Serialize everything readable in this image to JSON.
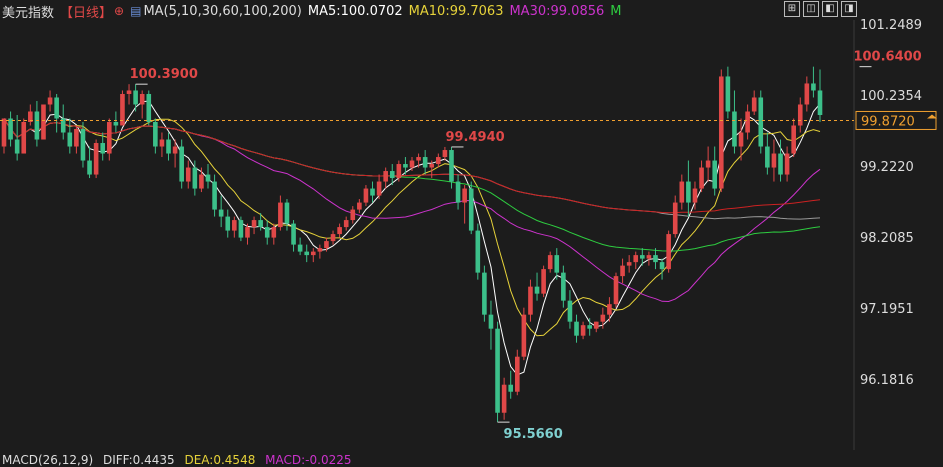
{
  "header": {
    "symbol": "美元指数",
    "period": "【日线】",
    "ma_list": "MA(5,10,30,60,100,200)",
    "ma5": "MA5:100.0702",
    "ma10": "MA10:99.7063",
    "ma30": "MA30:99.0856",
    "more": "M"
  },
  "macd": {
    "label": "MACD(26,12,9)",
    "diff": "DIFF:0.4435",
    "dea": "DEA:0.4548",
    "macd": "MACD:-0.0225"
  },
  "colors": {
    "up": "#e04848",
    "down": "#3cc08a",
    "ma5": "#ffffff",
    "ma10": "#e6d23a",
    "ma30": "#cc33cc",
    "ma60": "#2ecc40",
    "ma100": "#999999",
    "ma200": "#cc2222",
    "current": "#f0a030"
  },
  "chart_data": {
    "type": "candlestick",
    "y_ticks": [
      101.2489,
      100.2354,
      99.222,
      98.2085,
      97.1951,
      96.1816
    ],
    "y_tick_labels": [
      "101.2489",
      "100.2354",
      "99.2220",
      "98.2085",
      "97.1951",
      "96.1816"
    ],
    "current_price": 99.872,
    "current_label": "99.8720",
    "annotations": [
      {
        "label": "100.3900",
        "value": 100.39,
        "bar": 20
      },
      {
        "label": "99.4940",
        "value": 99.494,
        "bar": 68
      },
      {
        "label": "95.5660",
        "value": 95.566,
        "bar": 75
      },
      {
        "label": "100.6400",
        "value": 100.64,
        "bar": 130
      }
    ],
    "candles": [
      [
        99.5,
        99.9,
        99.4,
        99.9
      ],
      [
        99.9,
        100.0,
        99.5,
        99.6
      ],
      [
        99.6,
        99.95,
        99.3,
        99.4
      ],
      [
        99.4,
        99.9,
        99.4,
        99.85
      ],
      [
        99.85,
        100.1,
        99.8,
        100.0
      ],
      [
        100.0,
        100.15,
        99.5,
        99.6
      ],
      [
        99.6,
        100.1,
        99.6,
        100.1
      ],
      [
        100.1,
        100.3,
        100.0,
        100.2
      ],
      [
        100.2,
        100.25,
        99.7,
        99.9
      ],
      [
        99.9,
        100.1,
        99.6,
        99.7
      ],
      [
        99.7,
        99.9,
        99.4,
        99.5
      ],
      [
        99.5,
        99.8,
        99.4,
        99.75
      ],
      [
        99.75,
        99.85,
        99.2,
        99.3
      ],
      [
        99.3,
        99.5,
        99.05,
        99.1
      ],
      [
        99.1,
        99.6,
        99.05,
        99.55
      ],
      [
        99.55,
        99.7,
        99.3,
        99.4
      ],
      [
        99.4,
        99.9,
        99.3,
        99.85
      ],
      [
        99.85,
        100.0,
        99.7,
        99.8
      ],
      [
        99.8,
        100.3,
        99.8,
        100.25
      ],
      [
        100.25,
        100.39,
        100.1,
        100.3
      ],
      [
        100.3,
        100.39,
        100.0,
        100.1
      ],
      [
        100.1,
        100.3,
        99.9,
        100.25
      ],
      [
        100.25,
        100.3,
        99.8,
        99.85
      ],
      [
        99.85,
        99.9,
        99.4,
        99.5
      ],
      [
        99.5,
        99.7,
        99.35,
        99.6
      ],
      [
        99.6,
        99.7,
        99.3,
        99.4
      ],
      [
        99.4,
        99.6,
        99.2,
        99.5
      ],
      [
        99.5,
        99.6,
        98.9,
        99.0
      ],
      [
        99.0,
        99.3,
        98.9,
        99.2
      ],
      [
        99.2,
        99.3,
        98.8,
        98.9
      ],
      [
        98.9,
        99.2,
        98.85,
        99.1
      ],
      [
        99.1,
        99.25,
        98.9,
        99.0
      ],
      [
        99.0,
        99.1,
        98.5,
        98.6
      ],
      [
        98.6,
        98.8,
        98.35,
        98.5
      ],
      [
        98.5,
        98.6,
        98.2,
        98.3
      ],
      [
        98.3,
        98.5,
        98.2,
        98.45
      ],
      [
        98.45,
        98.5,
        98.15,
        98.2
      ],
      [
        98.2,
        98.4,
        98.1,
        98.35
      ],
      [
        98.35,
        98.5,
        98.25,
        98.45
      ],
      [
        98.45,
        98.55,
        98.3,
        98.35
      ],
      [
        98.35,
        98.45,
        98.1,
        98.2
      ],
      [
        98.2,
        98.4,
        98.1,
        98.35
      ],
      [
        98.35,
        98.8,
        98.3,
        98.7
      ],
      [
        98.7,
        98.75,
        98.3,
        98.4
      ],
      [
        98.4,
        98.45,
        98.0,
        98.1
      ],
      [
        98.1,
        98.2,
        97.95,
        98.0
      ],
      [
        98.0,
        98.1,
        97.85,
        97.95
      ],
      [
        97.95,
        98.05,
        97.85,
        98.0
      ],
      [
        98.0,
        98.1,
        97.9,
        98.05
      ],
      [
        98.05,
        98.2,
        98.0,
        98.15
      ],
      [
        98.15,
        98.3,
        98.1,
        98.25
      ],
      [
        98.25,
        98.4,
        98.2,
        98.35
      ],
      [
        98.35,
        98.5,
        98.3,
        98.45
      ],
      [
        98.45,
        98.65,
        98.4,
        98.6
      ],
      [
        98.6,
        98.75,
        98.55,
        98.7
      ],
      [
        98.7,
        98.95,
        98.65,
        98.9
      ],
      [
        98.9,
        99.0,
        98.7,
        98.8
      ],
      [
        98.8,
        99.1,
        98.75,
        99.0
      ],
      [
        99.0,
        99.2,
        98.9,
        99.15
      ],
      [
        99.15,
        99.25,
        98.95,
        99.05
      ],
      [
        99.05,
        99.3,
        99.0,
        99.25
      ],
      [
        99.25,
        99.35,
        99.1,
        99.2
      ],
      [
        99.2,
        99.35,
        99.15,
        99.3
      ],
      [
        99.3,
        99.4,
        99.2,
        99.35
      ],
      [
        99.35,
        99.45,
        99.1,
        99.2
      ],
      [
        99.2,
        99.3,
        99.05,
        99.25
      ],
      [
        99.25,
        99.4,
        99.2,
        99.35
      ],
      [
        99.35,
        99.494,
        99.3,
        99.45
      ],
      [
        99.45,
        99.494,
        98.9,
        99.0
      ],
      [
        99.0,
        99.1,
        98.6,
        98.7
      ],
      [
        98.7,
        98.95,
        98.4,
        98.9
      ],
      [
        98.9,
        99.0,
        98.25,
        98.3
      ],
      [
        98.3,
        98.4,
        97.6,
        97.7
      ],
      [
        97.7,
        97.8,
        97.0,
        97.1
      ],
      [
        97.1,
        97.3,
        96.6,
        96.9
      ],
      [
        96.9,
        97.0,
        95.566,
        95.7
      ],
      [
        95.7,
        96.2,
        95.6,
        96.1
      ],
      [
        96.1,
        96.3,
        95.9,
        96.0
      ],
      [
        96.0,
        96.6,
        95.95,
        96.5
      ],
      [
        96.5,
        97.2,
        96.45,
        97.1
      ],
      [
        97.1,
        97.6,
        97.0,
        97.5
      ],
      [
        97.5,
        97.7,
        97.3,
        97.4
      ],
      [
        97.4,
        97.8,
        97.35,
        97.75
      ],
      [
        97.75,
        98.0,
        97.7,
        97.95
      ],
      [
        97.95,
        98.05,
        97.6,
        97.7
      ],
      [
        97.7,
        97.8,
        97.2,
        97.3
      ],
      [
        97.3,
        97.45,
        96.9,
        97.0
      ],
      [
        97.0,
        97.1,
        96.7,
        96.8
      ],
      [
        96.8,
        97.0,
        96.75,
        96.95
      ],
      [
        96.95,
        97.05,
        96.8,
        96.9
      ],
      [
        96.9,
        97.0,
        96.85,
        97.0
      ],
      [
        97.0,
        97.2,
        96.9,
        97.1
      ],
      [
        97.1,
        97.35,
        97.0,
        97.25
      ],
      [
        97.25,
        97.7,
        97.2,
        97.65
      ],
      [
        97.65,
        97.9,
        97.55,
        97.8
      ],
      [
        97.8,
        97.95,
        97.7,
        97.85
      ],
      [
        97.85,
        98.0,
        97.75,
        97.95
      ],
      [
        97.95,
        98.05,
        97.8,
        97.9
      ],
      [
        97.9,
        98.0,
        97.8,
        97.95
      ],
      [
        97.95,
        98.05,
        97.75,
        97.85
      ],
      [
        97.85,
        97.9,
        97.6,
        97.75
      ],
      [
        97.75,
        98.3,
        97.7,
        98.25
      ],
      [
        98.25,
        98.8,
        98.2,
        98.7
      ],
      [
        98.7,
        99.1,
        98.6,
        99.0
      ],
      [
        99.0,
        99.3,
        98.5,
        98.7
      ],
      [
        98.7,
        99.0,
        98.6,
        98.9
      ],
      [
        98.9,
        99.3,
        98.85,
        99.2
      ],
      [
        99.2,
        99.5,
        99.0,
        99.3
      ],
      [
        99.3,
        99.5,
        98.8,
        98.9
      ],
      [
        98.9,
        100.6,
        98.85,
        100.5
      ],
      [
        100.5,
        100.64,
        99.9,
        100.0
      ],
      [
        100.0,
        100.3,
        99.4,
        99.5
      ],
      [
        99.5,
        99.9,
        99.3,
        99.7
      ],
      [
        99.7,
        100.1,
        99.6,
        100.0
      ],
      [
        100.0,
        100.3,
        99.95,
        100.2
      ],
      [
        100.2,
        100.3,
        99.4,
        99.5
      ],
      [
        99.5,
        99.7,
        99.1,
        99.2
      ],
      [
        99.2,
        99.6,
        99.0,
        99.4
      ],
      [
        99.4,
        99.6,
        99.0,
        99.1
      ],
      [
        99.1,
        99.5,
        99.0,
        99.4
      ],
      [
        99.4,
        99.9,
        99.35,
        99.8
      ],
      [
        99.8,
        100.2,
        99.7,
        100.1
      ],
      [
        100.1,
        100.5,
        100.0,
        100.4
      ],
      [
        100.4,
        100.64,
        100.2,
        100.3
      ],
      [
        100.3,
        100.6,
        99.85,
        99.95
      ]
    ],
    "ma_lines": [
      {
        "name": "MA5",
        "color": "#ffffff",
        "values": []
      },
      {
        "name": "MA10",
        "color": "#e6d23a",
        "values": []
      },
      {
        "name": "MA30",
        "color": "#cc33cc",
        "values": []
      }
    ]
  }
}
